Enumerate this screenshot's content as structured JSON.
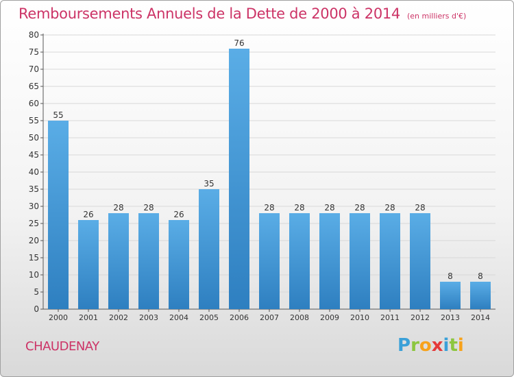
{
  "title": "Remboursements Annuels de la Dette de 2000 à 2014",
  "unit": "(en milliers d'€)",
  "commune": "CHAUDENAY",
  "logo": {
    "text": "Proxiti",
    "letters": [
      {
        "ch": "P",
        "color": "#3aa0d8"
      },
      {
        "ch": "r",
        "color": "#8cc63f"
      },
      {
        "ch": "o",
        "color": "#f7a21b"
      },
      {
        "ch": "x",
        "color": "#e53a3a"
      },
      {
        "ch": "i",
        "color": "#3aa0d8"
      },
      {
        "ch": "t",
        "color": "#8cc63f"
      },
      {
        "ch": "i",
        "color": "#f7a21b"
      }
    ]
  },
  "colors": {
    "title": "#cc3366",
    "bar_light": "#5aade6",
    "bar_dark": "#2e7fc0",
    "grid": "#d8d8d8",
    "axis_text": "#333333"
  },
  "chart_data": {
    "type": "bar",
    "categories": [
      "2000",
      "2001",
      "2002",
      "2003",
      "2004",
      "2005",
      "2006",
      "2007",
      "2008",
      "2009",
      "2010",
      "2011",
      "2012",
      "2013",
      "2014"
    ],
    "values": [
      55,
      26,
      28,
      28,
      26,
      35,
      76,
      28,
      28,
      28,
      28,
      28,
      28,
      8,
      8
    ],
    "data_labels": [
      "55",
      "26",
      "28",
      "28",
      "26",
      "35",
      "76",
      "28",
      "28",
      "28",
      "28",
      "28",
      "28",
      "8",
      "8"
    ],
    "ylim": [
      0,
      80
    ],
    "yticks": [
      0,
      5,
      10,
      15,
      20,
      25,
      30,
      35,
      40,
      45,
      50,
      55,
      60,
      65,
      70,
      75,
      80
    ],
    "grid": true
  }
}
